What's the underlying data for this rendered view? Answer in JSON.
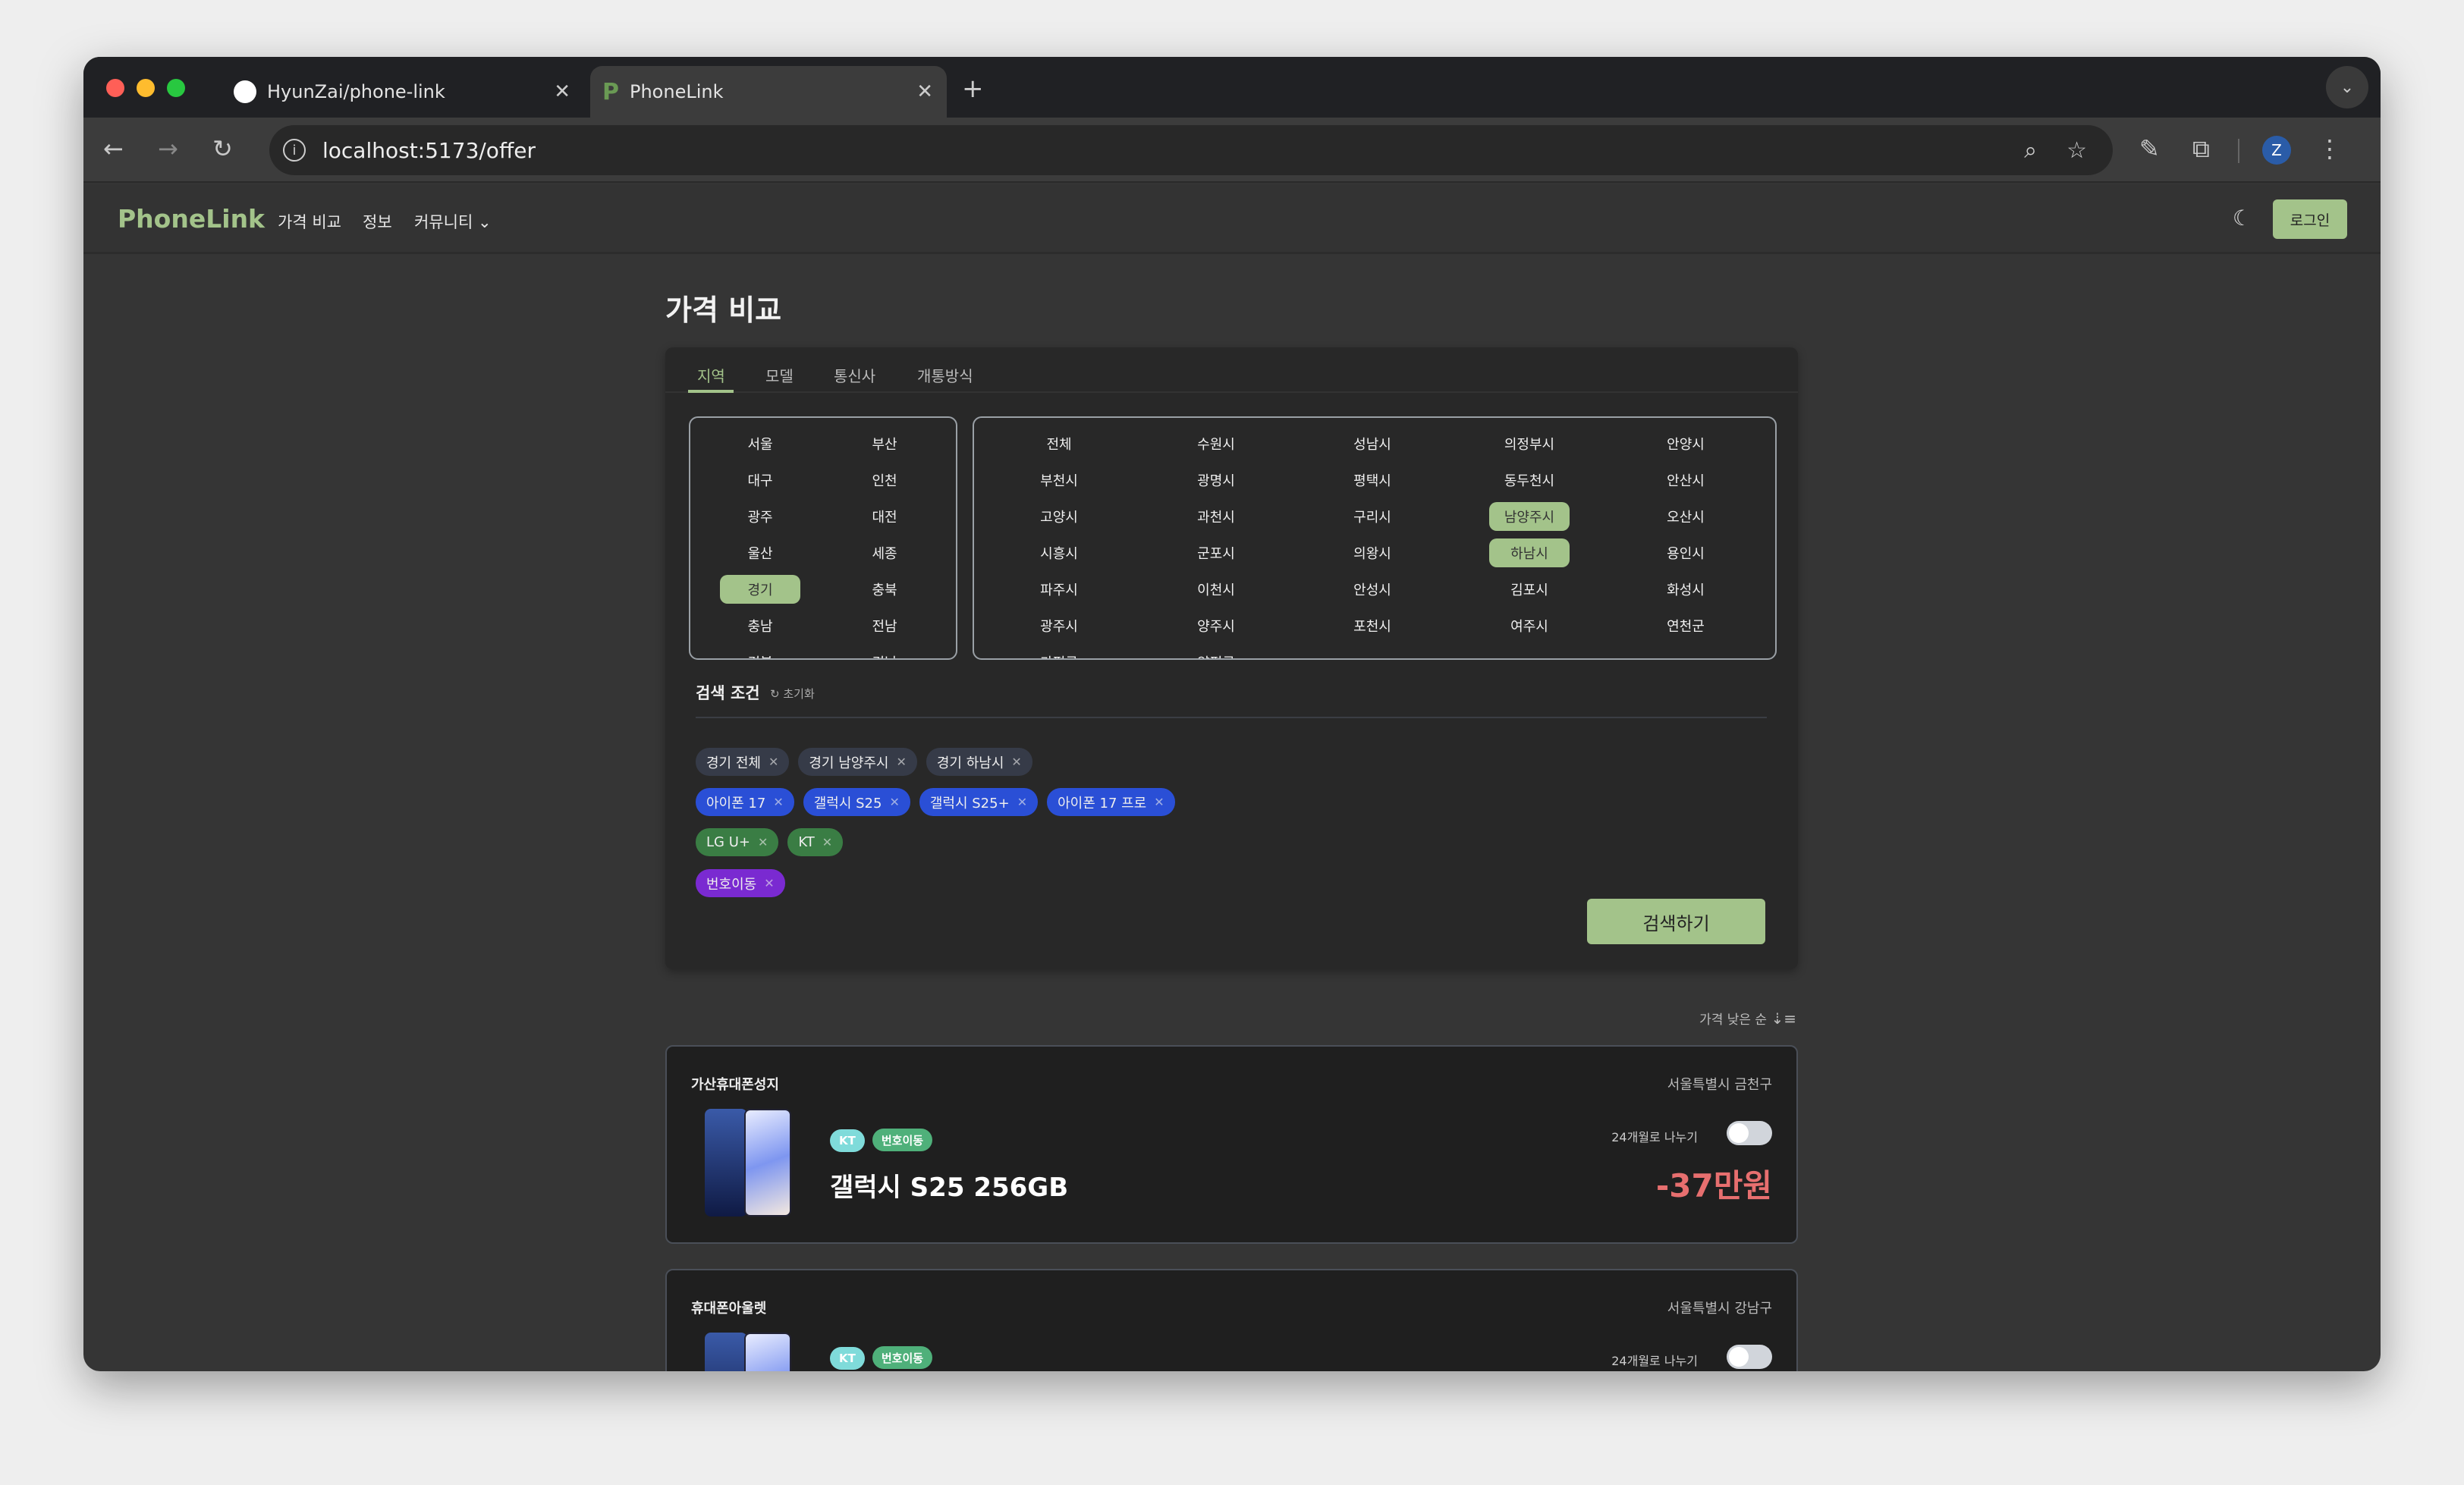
{
  "browser": {
    "tabs": [
      {
        "title": "HyunZai/phone-link",
        "icon": "github-icon"
      },
      {
        "title": "PhoneLink",
        "icon": "phonelink-favicon",
        "active": true
      }
    ],
    "url": "localhost:5173/offer",
    "profile_initial": "Z"
  },
  "header": {
    "brand": "PhoneLink",
    "nav": [
      "가격 비교",
      "정보",
      "커뮤니티"
    ],
    "login": "로그인"
  },
  "page": {
    "title": "가격 비교"
  },
  "filter": {
    "tabs": [
      "지역",
      "모델",
      "통신사",
      "개통방식"
    ],
    "active_tab": "지역",
    "provinces": [
      "서울",
      "부산",
      "대구",
      "인천",
      "광주",
      "대전",
      "울산",
      "세종",
      "경기",
      "충북",
      "충남",
      "전남",
      "경북",
      "경남"
    ],
    "selected_province": "경기",
    "cities": [
      "전체",
      "수원시",
      "성남시",
      "의정부시",
      "안양시",
      "부천시",
      "광명시",
      "평택시",
      "동두천시",
      "안산시",
      "고양시",
      "과천시",
      "구리시",
      "남양주시",
      "오산시",
      "시흥시",
      "군포시",
      "의왕시",
      "하남시",
      "용인시",
      "파주시",
      "이천시",
      "안성시",
      "김포시",
      "화성시",
      "광주시",
      "양주시",
      "포천시",
      "여주시",
      "연천군",
      "가평군",
      "양평군"
    ],
    "selected_cities": [
      "남양주시",
      "하남시"
    ],
    "conditions_label": "검색 조건",
    "reset_label": "초기화",
    "chips": {
      "region": [
        "경기 전체",
        "경기 남양주시",
        "경기 하남시"
      ],
      "model": [
        "아이폰 17",
        "갤럭시 S25",
        "갤럭시 S25+",
        "아이폰 17 프로"
      ],
      "carrier": [
        "LG U+",
        "KT"
      ],
      "type": [
        "번호이동"
      ]
    },
    "chip_colors": {
      "region": "#363b48",
      "model": "#2a4fd6",
      "carrier": "#3a7d44",
      "type": "#7a2ad1"
    },
    "search_button": "검색하기"
  },
  "sort": {
    "label": "가격 낮은 순"
  },
  "offers": [
    {
      "store": "가산휴대폰성지",
      "address": "서울특별시 금천구",
      "carrier": "KT",
      "type": "번호이동",
      "model": "갤럭시 S25 256GB",
      "split_label": "24개월로 나누기",
      "split_on": false,
      "price": "-37만원"
    },
    {
      "store": "휴대폰아울렛",
      "address": "서울특별시 강남구",
      "carrier": "KT",
      "type": "번호이동",
      "split_label": "24개월로 나누기",
      "split_on": false
    }
  ],
  "colors": {
    "accent": "#a3c38a",
    "price": "#e76f6f",
    "carrier_badge": "#7fdbda",
    "type_badge": "#4fb07a"
  }
}
